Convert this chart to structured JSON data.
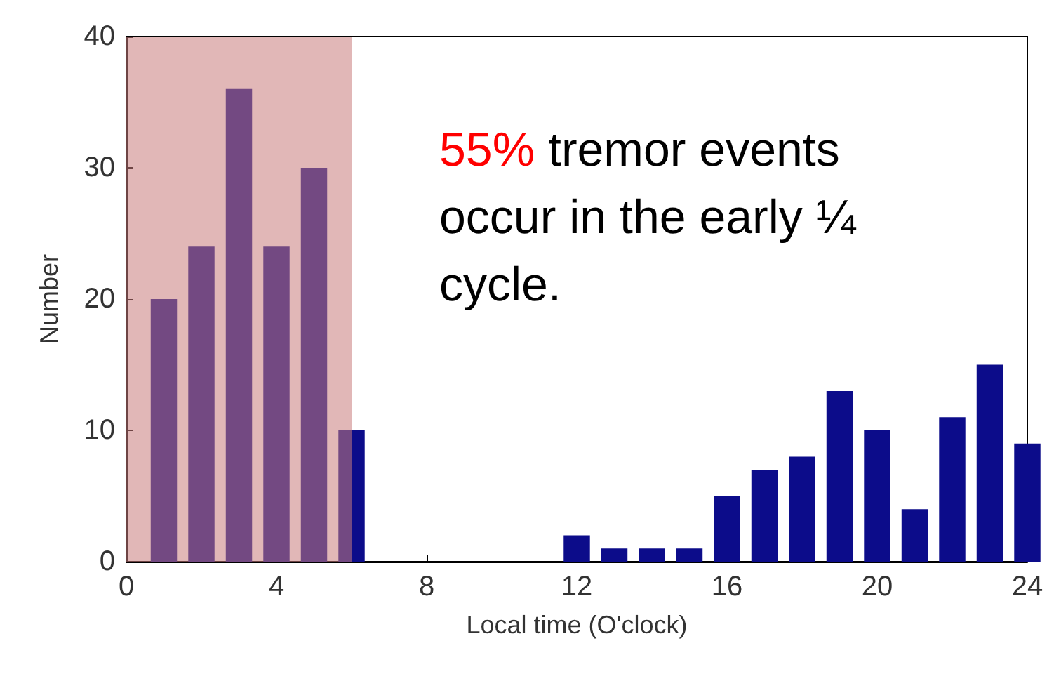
{
  "chart_data": {
    "type": "bar",
    "xlabel": "Local time (O'clock)",
    "ylabel": "Number",
    "x": [
      1,
      2,
      3,
      4,
      5,
      6,
      7,
      8,
      9,
      10,
      11,
      12,
      13,
      14,
      15,
      16,
      17,
      18,
      19,
      20,
      21,
      22,
      23,
      24
    ],
    "values": [
      20,
      24,
      36,
      24,
      30,
      10,
      0,
      0,
      0,
      0,
      0,
      2,
      1,
      1,
      1,
      5,
      7,
      8,
      13,
      10,
      4,
      11,
      15,
      9
    ],
    "color": "#0c0c8a",
    "xlim": [
      0,
      24
    ],
    "xticks": [
      0,
      4,
      8,
      12,
      16,
      20,
      24
    ],
    "ylim": [
      0,
      40
    ],
    "yticks": [
      0,
      10,
      20,
      30,
      40
    ],
    "bands": [
      {
        "axis": "x",
        "from": 0,
        "to": 6,
        "color": "#c97b7b"
      }
    ],
    "annotations": [
      "55% tremor events occur in the early ¼ cycle."
    ]
  }
}
